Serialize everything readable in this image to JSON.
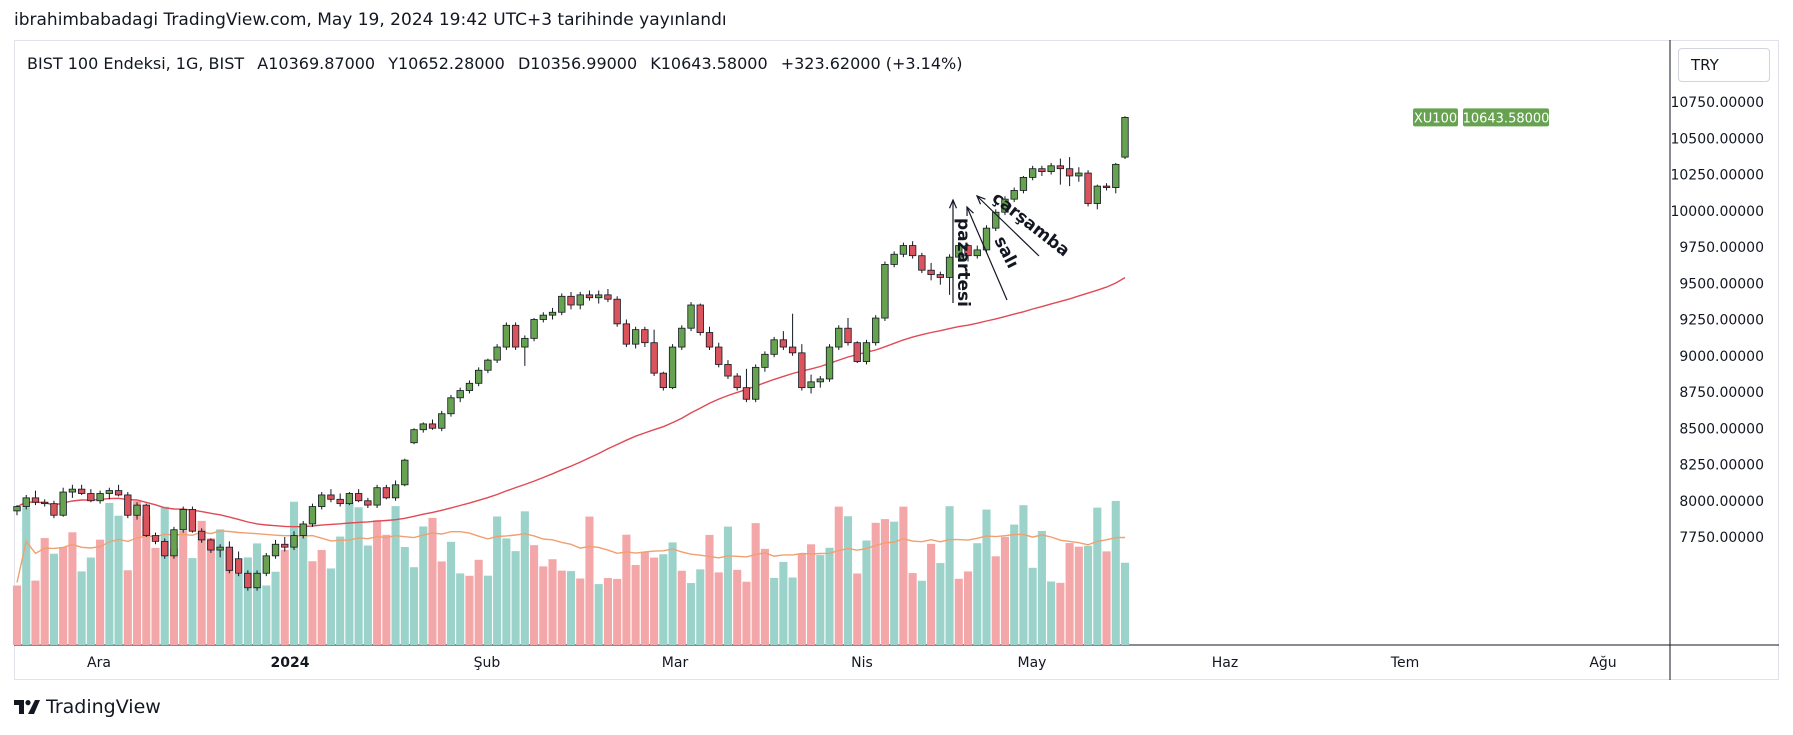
{
  "header": {
    "published_text": "ibrahimbabadagi TradingView.com, May 19, 2024 19:42 UTC+3 tarihinde yayınlandı"
  },
  "legend": {
    "symbol": "BIST 100 Endeksi, 1G, BIST",
    "open": "A10369.87000",
    "high": "Y10652.28000",
    "low": "D10356.99000",
    "close": "K10643.58000",
    "change": "+323.62000 (+3.14%)"
  },
  "currency": "TRY",
  "price_tag": {
    "symbol": "XU100",
    "value": "10643.58000"
  },
  "footer": {
    "brand": "TradingView"
  },
  "colors": {
    "up": "#66a24f",
    "down": "#d9545c",
    "vol_up": "#9bd3cb",
    "vol_down": "#f4a7a8",
    "ma_price": "#e04a55",
    "ma_volume": "#f0a070",
    "tag_bg": "#66a24f"
  },
  "chart_data": {
    "type": "candlestick",
    "y_ticks": [
      "10750.00000",
      "10500.00000",
      "10250.00000",
      "10000.00000",
      "9750.00000",
      "9500.00000",
      "9250.00000",
      "9000.00000",
      "8750.00000",
      "8500.00000",
      "8250.00000",
      "8000.00000",
      "7750.00000"
    ],
    "x_ticks": [
      "Ara",
      "2024",
      "Şub",
      "Mar",
      "Nis",
      "May",
      "Haz",
      "Tem",
      "Ağu"
    ],
    "last_close": 10643.58,
    "annotations": [
      "pazartesi",
      "salı",
      "çarşamba"
    ],
    "candles": [
      [
        7930,
        7970,
        7900,
        7960
      ],
      [
        7960,
        8040,
        7940,
        8020
      ],
      [
        8020,
        8070,
        7970,
        7990
      ],
      [
        7990,
        8010,
        7960,
        7980
      ],
      [
        7980,
        8000,
        7880,
        7900
      ],
      [
        7900,
        8090,
        7890,
        8060
      ],
      [
        8060,
        8110,
        8020,
        8080
      ],
      [
        8080,
        8110,
        8040,
        8050
      ],
      [
        8050,
        8080,
        7990,
        8000
      ],
      [
        8000,
        8070,
        7980,
        8050
      ],
      [
        8050,
        8090,
        8010,
        8070
      ],
      [
        8070,
        8110,
        8030,
        8040
      ],
      [
        8040,
        8060,
        7880,
        7900
      ],
      [
        7900,
        7990,
        7870,
        7970
      ],
      [
        7970,
        7980,
        7750,
        7760
      ],
      [
        7760,
        7780,
        7700,
        7720
      ],
      [
        7720,
        7740,
        7600,
        7620
      ],
      [
        7620,
        7820,
        7600,
        7800
      ],
      [
        7800,
        7960,
        7780,
        7940
      ],
      [
        7940,
        7960,
        7780,
        7790
      ],
      [
        7790,
        7810,
        7710,
        7730
      ],
      [
        7730,
        7740,
        7640,
        7660
      ],
      [
        7660,
        7700,
        7610,
        7680
      ],
      [
        7680,
        7720,
        7500,
        7520
      ],
      [
        7600,
        7650,
        7480,
        7500
      ],
      [
        7500,
        7520,
        7380,
        7400
      ],
      [
        7400,
        7520,
        7380,
        7500
      ],
      [
        7500,
        7640,
        7480,
        7620
      ],
      [
        7620,
        7730,
        7600,
        7700
      ],
      [
        7700,
        7750,
        7650,
        7680
      ],
      [
        7680,
        7790,
        7660,
        7760
      ],
      [
        7760,
        7860,
        7740,
        7840
      ],
      [
        7840,
        7980,
        7820,
        7960
      ],
      [
        7960,
        8060,
        7940,
        8040
      ],
      [
        8040,
        8080,
        7990,
        8010
      ],
      [
        8010,
        8050,
        7960,
        7980
      ],
      [
        7980,
        8060,
        7970,
        8050
      ],
      [
        8050,
        8080,
        7990,
        8000
      ],
      [
        8000,
        8020,
        7950,
        7970
      ],
      [
        7970,
        8110,
        7950,
        8090
      ],
      [
        8090,
        8110,
        8010,
        8020
      ],
      [
        8020,
        8140,
        8000,
        8110
      ],
      [
        8110,
        8290,
        8100,
        8280
      ],
      [
        8400,
        8500,
        8390,
        8490
      ],
      [
        8490,
        8540,
        8470,
        8530
      ],
      [
        8530,
        8560,
        8490,
        8500
      ],
      [
        8500,
        8620,
        8480,
        8600
      ],
      [
        8600,
        8730,
        8580,
        8710
      ],
      [
        8710,
        8780,
        8680,
        8760
      ],
      [
        8760,
        8830,
        8740,
        8810
      ],
      [
        8810,
        8920,
        8790,
        8900
      ],
      [
        8900,
        8980,
        8880,
        8970
      ],
      [
        8970,
        9080,
        8950,
        9060
      ],
      [
        9060,
        9230,
        9040,
        9210
      ],
      [
        9210,
        9230,
        9040,
        9060
      ],
      [
        9060,
        9140,
        8930,
        9120
      ],
      [
        9120,
        9260,
        9100,
        9250
      ],
      [
        9250,
        9300,
        9230,
        9280
      ],
      [
        9280,
        9330,
        9250,
        9300
      ],
      [
        9300,
        9430,
        9280,
        9410
      ],
      [
        9410,
        9440,
        9320,
        9350
      ],
      [
        9350,
        9440,
        9320,
        9420
      ],
      [
        9420,
        9450,
        9380,
        9400
      ],
      [
        9400,
        9450,
        9360,
        9420
      ],
      [
        9420,
        9460,
        9370,
        9390
      ],
      [
        9390,
        9410,
        9200,
        9220
      ],
      [
        9220,
        9250,
        9060,
        9080
      ],
      [
        9080,
        9200,
        9050,
        9180
      ],
      [
        9180,
        9200,
        9060,
        9090
      ],
      [
        9090,
        9180,
        8860,
        8880
      ],
      [
        8880,
        8890,
        8760,
        8780
      ],
      [
        8780,
        9080,
        8770,
        9060
      ],
      [
        9060,
        9210,
        9040,
        9190
      ],
      [
        9190,
        9370,
        9170,
        9350
      ],
      [
        9350,
        9360,
        9140,
        9160
      ],
      [
        9160,
        9200,
        9040,
        9060
      ],
      [
        9060,
        9090,
        8920,
        8940
      ],
      [
        8940,
        8970,
        8840,
        8860
      ],
      [
        8860,
        8880,
        8760,
        8780
      ],
      [
        8780,
        8910,
        8680,
        8700
      ],
      [
        8700,
        8940,
        8680,
        8920
      ],
      [
        8920,
        9030,
        8890,
        9010
      ],
      [
        9010,
        9130,
        8990,
        9110
      ],
      [
        9110,
        9170,
        9040,
        9060
      ],
      [
        9060,
        9290,
        9000,
        9020
      ],
      [
        9020,
        9080,
        8760,
        8780
      ],
      [
        8780,
        8870,
        8740,
        8820
      ],
      [
        8820,
        8860,
        8780,
        8840
      ],
      [
        8840,
        9080,
        8820,
        9060
      ],
      [
        9060,
        9210,
        9040,
        9190
      ],
      [
        9190,
        9260,
        9070,
        9090
      ],
      [
        9090,
        9100,
        8950,
        8960
      ],
      [
        8960,
        9110,
        8940,
        9090
      ],
      [
        9090,
        9280,
        9070,
        9260
      ],
      [
        9260,
        9650,
        9240,
        9630
      ],
      [
        9630,
        9720,
        9610,
        9700
      ],
      [
        9700,
        9780,
        9680,
        9760
      ],
      [
        9760,
        9790,
        9670,
        9690
      ],
      [
        9690,
        9710,
        9570,
        9590
      ],
      [
        9590,
        9640,
        9520,
        9560
      ],
      [
        9560,
        9580,
        9490,
        9540
      ],
      [
        9540,
        9700,
        9420,
        9680
      ],
      [
        9680,
        9770,
        9650,
        9760
      ],
      [
        9760,
        9770,
        9650,
        9690
      ],
      [
        9690,
        9760,
        9670,
        9730
      ],
      [
        9730,
        9900,
        9710,
        9880
      ],
      [
        9880,
        10010,
        9860,
        9990
      ],
      [
        9990,
        10100,
        9970,
        10080
      ],
      [
        10080,
        10160,
        10060,
        10140
      ],
      [
        10140,
        10240,
        10120,
        10230
      ],
      [
        10230,
        10310,
        10210,
        10290
      ],
      [
        10290,
        10310,
        10240,
        10270
      ],
      [
        10270,
        10330,
        10250,
        10310
      ],
      [
        10310,
        10360,
        10180,
        10290
      ],
      [
        10290,
        10370,
        10170,
        10240
      ],
      [
        10240,
        10300,
        10200,
        10260
      ],
      [
        10260,
        10280,
        10030,
        10050
      ],
      [
        10050,
        10180,
        10010,
        10170
      ],
      [
        10170,
        10190,
        10140,
        10160
      ],
      [
        10160,
        10330,
        10120,
        10320
      ],
      [
        10369.87,
        10652.28,
        10356.99,
        10643.58
      ]
    ],
    "volume_dir_pattern": "duddudduuduudddduddudduduuuuuduudduuuuudduuuudduudduuuuudddduddudddddduuduuddudddduuudduudududdudduduudduudduuuuuddduuduu"
  }
}
